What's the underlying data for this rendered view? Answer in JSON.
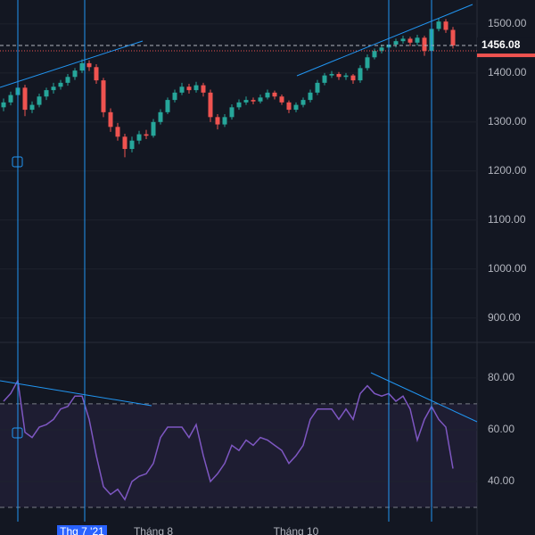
{
  "chart_data": [
    {
      "type": "candlestick",
      "up_color": "#26a69a",
      "down_color": "#ef5350",
      "ylim": [
        852,
        1549
      ],
      "yticks": [
        {
          "value": 900,
          "label": "900.00"
        },
        {
          "value": 1000,
          "label": "1000.00"
        },
        {
          "value": 1100,
          "label": "1100.00"
        },
        {
          "value": 1200,
          "label": "1200.00"
        },
        {
          "value": 1300,
          "label": "1300.00"
        },
        {
          "value": 1400,
          "label": "1400.00"
        },
        {
          "value": 1500,
          "label": "1500.00"
        }
      ],
      "xticks": [
        {
          "value": 11,
          "label": "Thg 7 '21"
        },
        {
          "value": 21,
          "label": "Tháng 8"
        },
        {
          "value": 41,
          "label": "Tháng 10"
        }
      ],
      "last_price": 1456.08,
      "ohlc": [
        [
          1330,
          1348,
          1322,
          1340
        ],
        [
          1340,
          1362,
          1334,
          1355
        ],
        [
          1355,
          1378,
          1348,
          1370
        ],
        [
          1370,
          1376,
          1312,
          1325
        ],
        [
          1325,
          1342,
          1318,
          1335
        ],
        [
          1335,
          1358,
          1330,
          1352
        ],
        [
          1352,
          1370,
          1345,
          1365
        ],
        [
          1365,
          1380,
          1358,
          1372
        ],
        [
          1372,
          1386,
          1366,
          1380
        ],
        [
          1380,
          1398,
          1374,
          1392
        ],
        [
          1392,
          1410,
          1386,
          1405
        ],
        [
          1405,
          1428,
          1400,
          1420
        ],
        [
          1420,
          1426,
          1404,
          1412
        ],
        [
          1412,
          1418,
          1378,
          1385
        ],
        [
          1385,
          1390,
          1310,
          1320
        ],
        [
          1320,
          1328,
          1280,
          1290
        ],
        [
          1290,
          1298,
          1262,
          1270
        ],
        [
          1270,
          1276,
          1228,
          1245
        ],
        [
          1245,
          1270,
          1238,
          1262
        ],
        [
          1262,
          1282,
          1255,
          1275
        ],
        [
          1275,
          1284,
          1265,
          1272
        ],
        [
          1272,
          1306,
          1268,
          1300
        ],
        [
          1300,
          1326,
          1295,
          1320
        ],
        [
          1320,
          1350,
          1316,
          1345
        ],
        [
          1345,
          1366,
          1340,
          1360
        ],
        [
          1360,
          1380,
          1355,
          1372
        ],
        [
          1372,
          1378,
          1358,
          1365
        ],
        [
          1365,
          1382,
          1360,
          1375
        ],
        [
          1375,
          1380,
          1352,
          1360
        ],
        [
          1360,
          1366,
          1300,
          1310
        ],
        [
          1310,
          1316,
          1285,
          1295
        ],
        [
          1295,
          1316,
          1290,
          1310
        ],
        [
          1310,
          1336,
          1305,
          1330
        ],
        [
          1330,
          1346,
          1325,
          1340
        ],
        [
          1340,
          1352,
          1335,
          1345
        ],
        [
          1345,
          1350,
          1336,
          1342
        ],
        [
          1342,
          1356,
          1338,
          1350
        ],
        [
          1350,
          1366,
          1346,
          1360
        ],
        [
          1360,
          1364,
          1346,
          1352
        ],
        [
          1352,
          1356,
          1335,
          1340
        ],
        [
          1340,
          1344,
          1318,
          1325
        ],
        [
          1325,
          1340,
          1320,
          1335
        ],
        [
          1335,
          1350,
          1330,
          1345
        ],
        [
          1345,
          1366,
          1340,
          1360
        ],
        [
          1360,
          1386,
          1355,
          1380
        ],
        [
          1380,
          1400,
          1375,
          1395
        ],
        [
          1395,
          1404,
          1390,
          1398
        ],
        [
          1398,
          1402,
          1386,
          1392
        ],
        [
          1392,
          1400,
          1386,
          1395
        ],
        [
          1395,
          1398,
          1378,
          1385
        ],
        [
          1385,
          1416,
          1380,
          1410
        ],
        [
          1410,
          1438,
          1405,
          1432
        ],
        [
          1432,
          1450,
          1428,
          1445
        ],
        [
          1445,
          1458,
          1440,
          1452
        ],
        [
          1452,
          1464,
          1446,
          1458
        ],
        [
          1458,
          1470,
          1452,
          1465
        ],
        [
          1465,
          1476,
          1460,
          1470
        ],
        [
          1470,
          1474,
          1455,
          1462
        ],
        [
          1462,
          1478,
          1456,
          1472
        ],
        [
          1472,
          1476,
          1435,
          1445
        ],
        [
          1445,
          1496,
          1440,
          1490
        ],
        [
          1490,
          1512,
          1485,
          1505
        ],
        [
          1505,
          1510,
          1482,
          1488
        ],
        [
          1488,
          1494,
          1450,
          1456.08
        ]
      ]
    },
    {
      "type": "line",
      "color": "#7e57c2",
      "ylim": [
        24.5,
        93.4
      ],
      "yticks": [
        {
          "value": 40,
          "label": "40.00"
        },
        {
          "value": 60,
          "label": "60.00"
        },
        {
          "value": 80,
          "label": "80.00"
        }
      ],
      "bands": [
        30,
        70
      ],
      "values": [
        71,
        74,
        79,
        59,
        57,
        61,
        62,
        64,
        68,
        69,
        73,
        73,
        64,
        50,
        38,
        35,
        37,
        33,
        40,
        42,
        43,
        47,
        57,
        61,
        61,
        61,
        57,
        62,
        50,
        40,
        43,
        47,
        54,
        52,
        56,
        54,
        57,
        56,
        54,
        52,
        47,
        50,
        54,
        64,
        68,
        68,
        68,
        64,
        68,
        64,
        74,
        77,
        74,
        73,
        74,
        71,
        73,
        68,
        56,
        64,
        69,
        64,
        61,
        45
      ]
    }
  ]
}
